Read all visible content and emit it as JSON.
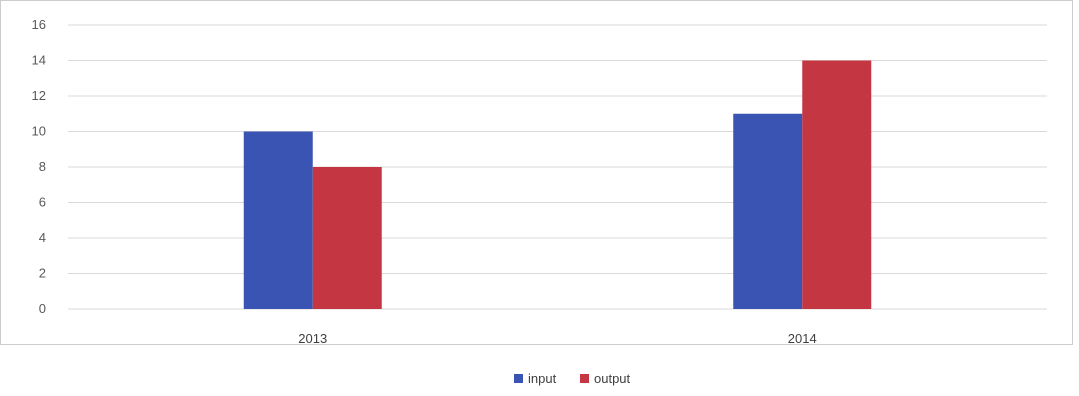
{
  "chart_data": {
    "type": "bar",
    "categories": [
      "2013",
      "2014"
    ],
    "series": [
      {
        "name": "input",
        "values": [
          10,
          11
        ],
        "color": "#3a54b4"
      },
      {
        "name": "output",
        "values": [
          8,
          14
        ],
        "color": "#c43642"
      }
    ],
    "ylim": [
      0,
      16
    ],
    "yticks": [
      0,
      2,
      4,
      6,
      8,
      10,
      12,
      14,
      16
    ],
    "grid": true,
    "legend": "bottom-center",
    "colors": {
      "grid": "#d9d9d9",
      "frame": "#cccccc"
    }
  }
}
